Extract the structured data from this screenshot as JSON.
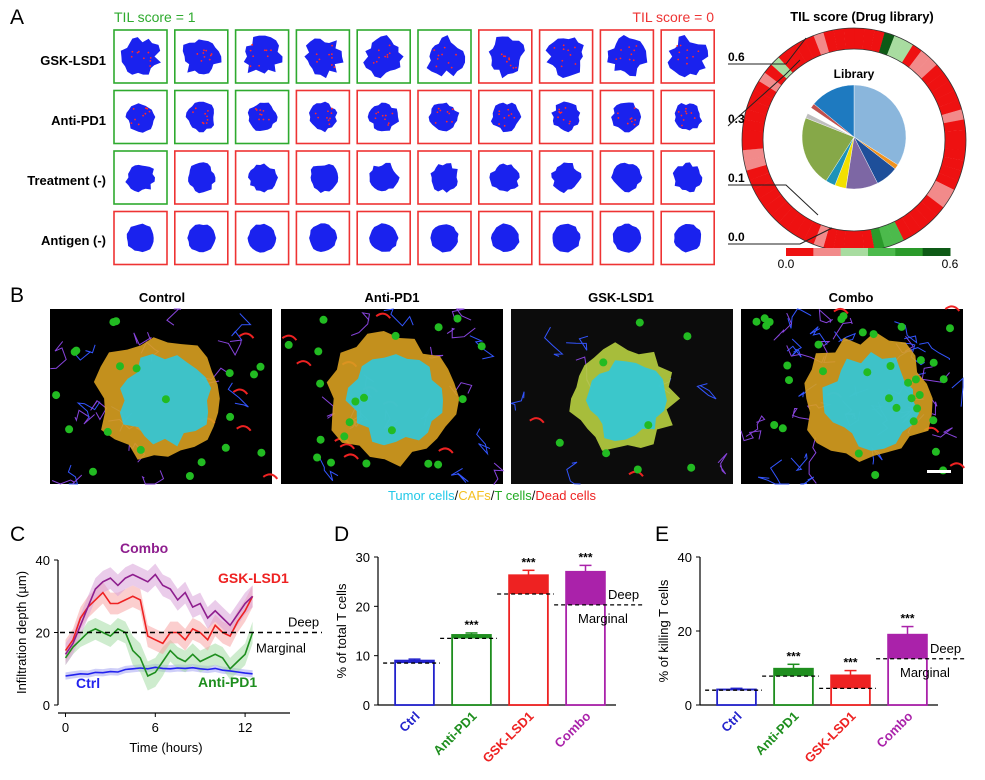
{
  "panels": {
    "a": "A",
    "b": "B",
    "c": "C",
    "d": "D",
    "e": "E"
  },
  "panel_a": {
    "header_left": "TIL score = 1",
    "header_right": "TIL score = 0",
    "rows": [
      "GSK-LSD1",
      "Anti-PD1",
      "Treatment (-)",
      "Antigen (-)"
    ],
    "scores": [
      [
        1,
        1,
        1,
        1,
        1,
        1,
        0,
        0,
        0,
        0
      ],
      [
        1,
        1,
        1,
        0,
        0,
        0,
        0,
        0,
        0,
        0
      ],
      [
        1,
        0,
        0,
        0,
        0,
        0,
        0,
        0,
        0,
        0
      ],
      [
        0,
        0,
        0,
        0,
        0,
        0,
        0,
        0,
        0,
        0
      ]
    ],
    "colors": {
      "score1": "#2eaa2e",
      "score0": "#ee3333",
      "spheroid": "#1a22ee",
      "dot": "#ff2a2a"
    }
  },
  "donut": {
    "title": "TIL score (Drug library)",
    "inner_title": "Library",
    "score_labels": [
      "0.6",
      "0.3",
      "0.1",
      "0.0"
    ],
    "colorbar_min": "0.0",
    "colorbar_max": "0.6",
    "colorbar_colors": [
      "#ee1111",
      "#f28a8a",
      "#a8dca0",
      "#4cba4c",
      "#2a9a2a",
      "#0e5a16"
    ],
    "pie_slices": [
      {
        "value": 0.34,
        "color": "#8ab6dc"
      },
      {
        "value": 0.015,
        "color": "#f0921e"
      },
      {
        "value": 0.07,
        "color": "#1e4f9a"
      },
      {
        "value": 0.1,
        "color": "#7d67a4"
      },
      {
        "value": 0.035,
        "color": "#f2e000"
      },
      {
        "value": 0.03,
        "color": "#1e93b8"
      },
      {
        "value": 0.22,
        "color": "#86a848"
      },
      {
        "value": 0.015,
        "color": "#bfbfbf"
      },
      {
        "value": 0.02,
        "color": "#ffffff"
      },
      {
        "value": 0.015,
        "color": "#c0504d"
      },
      {
        "value": 0.14,
        "color": "#1e7ac0"
      }
    ]
  },
  "panel_b": {
    "images": [
      "Control",
      "Anti-PD1",
      "GSK-LSD1",
      "Combo"
    ],
    "legend": [
      {
        "text": "Tumor cells",
        "color": "#22c8e8"
      },
      {
        "text": "/",
        "color": "#111111"
      },
      {
        "text": "CAFs",
        "color": "#f4c020"
      },
      {
        "text": "/",
        "color": "#111111"
      },
      {
        "text": "T cells",
        "color": "#22aa22"
      },
      {
        "text": "/",
        "color": "#111111"
      },
      {
        "text": "Dead cells",
        "color": "#ee2222"
      }
    ]
  },
  "chart_data": [
    {
      "id": "C",
      "type": "line",
      "xlabel": "Time (hours)",
      "ylabel": "Infiltration depth (µm)",
      "xlim": [
        -0.5,
        15
      ],
      "ylim": [
        0,
        40
      ],
      "xticks": [
        0,
        6,
        12
      ],
      "yticks": [
        0,
        20,
        40
      ],
      "reference_line": {
        "y": 20,
        "labels": [
          "Deep",
          "Marginal"
        ]
      },
      "x": [
        0,
        0.5,
        1,
        1.5,
        2,
        2.5,
        3,
        3.5,
        4,
        4.5,
        5,
        5.5,
        6,
        6.5,
        7,
        7.5,
        8,
        8.5,
        9,
        9.5,
        10,
        10.5,
        11,
        11.5,
        12,
        12.5
      ],
      "series": [
        {
          "name": "Combo",
          "color": "#8e1e8e",
          "band": "#d9a3d9",
          "values": [
            14,
            17,
            22,
            27,
            32,
            34,
            35,
            33,
            35,
            36,
            35,
            34,
            36,
            33,
            32,
            29,
            31,
            27,
            28,
            24,
            26,
            24,
            22,
            25,
            28,
            30
          ],
          "err": [
            3,
            3,
            3,
            3,
            3,
            3,
            3,
            3,
            3,
            3,
            3,
            3,
            3,
            3,
            3,
            3,
            3,
            3,
            3,
            3,
            3,
            3,
            3,
            3,
            3,
            3
          ]
        },
        {
          "name": "GSK-LSD1",
          "color": "#ee2222",
          "band": "#f7a6a6",
          "values": [
            15,
            18,
            24,
            27,
            29,
            31,
            28,
            28,
            29,
            30,
            29,
            19,
            18,
            17,
            20,
            20,
            18,
            21,
            20,
            18,
            22,
            20,
            19,
            23,
            26,
            30
          ],
          "err": [
            3,
            3,
            3,
            3,
            3,
            3,
            3,
            3,
            3,
            3,
            3,
            3,
            3,
            3,
            3,
            3,
            3,
            3,
            3,
            3,
            3,
            3,
            3,
            3,
            3,
            3
          ]
        },
        {
          "name": "Anti-PD1",
          "color": "#1e8e1e",
          "band": "#a6dca6",
          "values": [
            13,
            16,
            18,
            20,
            21,
            20,
            19,
            21,
            20,
            15,
            13,
            8,
            9,
            12,
            15,
            13,
            12,
            14,
            12,
            13,
            14,
            13,
            10,
            12,
            14,
            20
          ],
          "err": [
            2,
            2,
            2,
            3,
            3,
            3,
            3,
            3,
            3,
            4,
            4,
            4,
            4,
            4,
            3,
            3,
            3,
            3,
            3,
            3,
            3,
            3,
            3,
            3,
            3,
            3
          ]
        },
        {
          "name": "Ctrl",
          "color": "#2222ee",
          "band": "#a6a6f2",
          "values": [
            8,
            8.3,
            8.6,
            8.5,
            9,
            8.9,
            9.2,
            9.1,
            9.8,
            10,
            10.2,
            10,
            10.4,
            10.1,
            10,
            10.2,
            10.1,
            10.3,
            10,
            9.8,
            10.1,
            9.6,
            9.4,
            9.1,
            8.8,
            8.6
          ],
          "err": [
            1,
            1,
            1,
            1,
            1,
            1,
            1,
            1,
            1,
            1,
            1,
            1,
            1,
            1,
            1,
            1,
            1,
            1,
            1,
            1,
            1,
            1,
            1,
            1,
            1,
            1
          ]
        }
      ]
    },
    {
      "id": "D",
      "type": "bar",
      "ylabel": "% of total T cells",
      "ylim": [
        0,
        30
      ],
      "yticks": [
        0,
        10,
        20,
        30
      ],
      "categories": [
        "Ctrl",
        "Anti-PD1",
        "GSK-LSD1",
        "Combo"
      ],
      "category_colors": [
        "#2222cc",
        "#1e8e1e",
        "#ee2222",
        "#aa22aa"
      ],
      "values": [
        9,
        14.2,
        26.3,
        27
      ],
      "errors": [
        0.3,
        0.4,
        1.0,
        1.3
      ],
      "threshold": [
        8.5,
        13.5,
        22.5,
        20.3
      ],
      "significance": [
        "",
        "***",
        "***",
        "***"
      ],
      "labels": [
        "Deep",
        "Marginal"
      ]
    },
    {
      "id": "E",
      "type": "bar",
      "ylabel": "% of killing T cells",
      "ylim": [
        0,
        40
      ],
      "yticks": [
        0,
        20,
        40
      ],
      "categories": [
        "Ctrl",
        "Anti-PD1",
        "GSK-LSD1",
        "Combo"
      ],
      "category_colors": [
        "#2222cc",
        "#1e8e1e",
        "#ee2222",
        "#aa22aa"
      ],
      "values": [
        4.2,
        9.8,
        8,
        19
      ],
      "errors": [
        0.3,
        1.2,
        1.3,
        2.2
      ],
      "threshold": [
        4,
        7.8,
        4.5,
        12.5
      ],
      "significance": [
        "",
        "***",
        "***",
        "***"
      ],
      "labels": [
        "Deep",
        "Marginal"
      ]
    }
  ]
}
